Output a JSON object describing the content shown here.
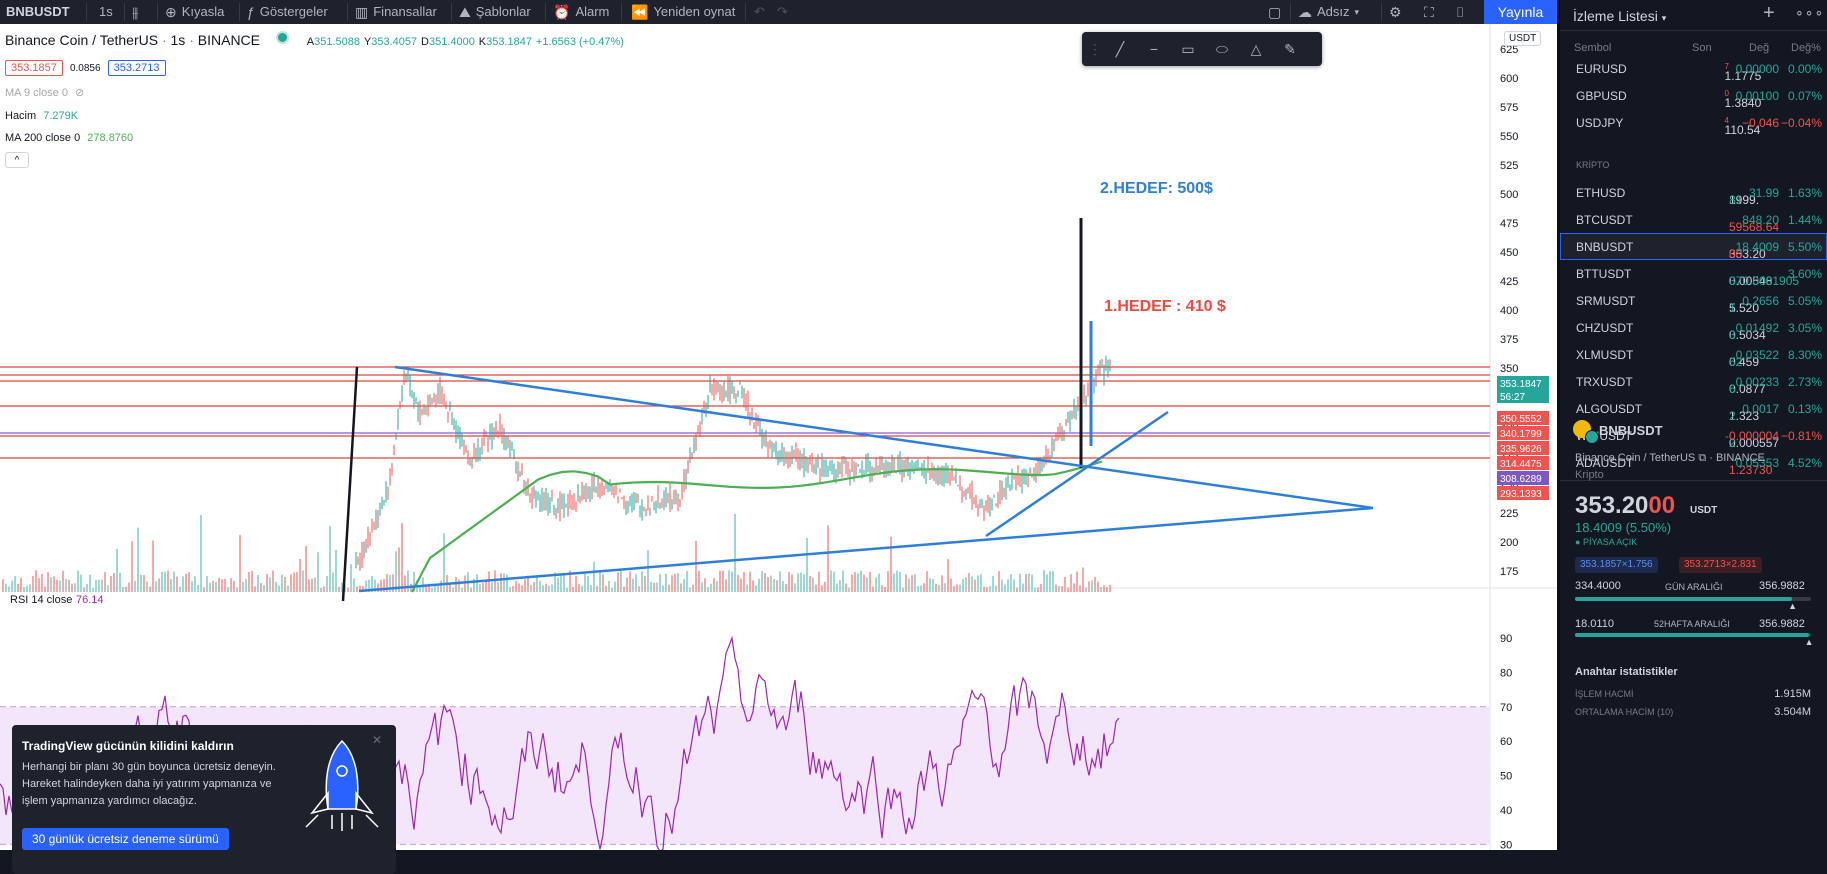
{
  "toolbar": {
    "symbol": "BNBUSDT",
    "interval": "1s",
    "compare": "Kıyasla",
    "indicators": "Göstergeler",
    "financials": "Finansallar",
    "templates": "Şablonlar",
    "alert": "Alarm",
    "replay": "Yeniden oynat",
    "layout_name": "Adsız",
    "publish": "Yayınla"
  },
  "legend": {
    "title": "Binance Coin / TetherUS",
    "interval": "1s",
    "exchange": "BINANCE",
    "o_label": "A",
    "o": "351.5088",
    "h_label": "Y",
    "h": "353.4057",
    "l_label": "D",
    "l": "351.4000",
    "c_label": "K",
    "c": "353.1847",
    "change": "+1.6563 (+0.47%)",
    "sell": "353.1857",
    "spread": "0.0856",
    "buy": "353.2713",
    "ma9": "MA 9 close 0",
    "volume_label": "Hacim",
    "volume": "7.279K",
    "ma200_label": "MA 200 close 0",
    "ma200": "278.8760",
    "collapse": "^",
    "currency": "USDT"
  },
  "annotations": {
    "target2": "2.HEDEF: 500$",
    "target1": "1.HEDEF : 410 $"
  },
  "price_axis": [
    "625",
    "600",
    "575",
    "550",
    "525",
    "500",
    "475",
    "450",
    "425",
    "400",
    "375",
    "350",
    "325",
    "300",
    "275",
    "250",
    "225",
    "200",
    "175"
  ],
  "price_labels": {
    "last": "353.1847",
    "countdown": "56:27",
    "l1": "350.5552",
    "l2": "340.1799",
    "l3": "335.9626",
    "l4": "314.4475",
    "l5": "308.6289",
    "l6": "293.1393"
  },
  "rsi": {
    "label": "RSI 14 close",
    "value": "76.14",
    "axis": [
      "90",
      "80",
      "70",
      "60",
      "50",
      "40",
      "30"
    ]
  },
  "promo": {
    "title": "TradingView gücünün kilidini kaldırın",
    "desc": "Herhangi bir planı 30 gün boyunca ücretsiz deneyin. Hareket halindeyken daha iyi yatırım yapmanıza ve işlem yapmanıza yardımcı olacağız.",
    "button": "30 günlük ücretsiz deneme sürümü"
  },
  "watchlist": {
    "title": "İzleme Listesi",
    "headers": {
      "symbol": "Sembol",
      "last": "Son",
      "chg": "Değ",
      "pct": "Değ%"
    },
    "forex": [
      {
        "sym": "EURUSD",
        "last": "1.1775",
        "sup": "7",
        "chg": "0.00000",
        "pct": "0.00%",
        "dir": "up"
      },
      {
        "sym": "GBPUSD",
        "last": "1.3840",
        "sup": "0",
        "chg": "0.00100",
        "pct": "0.07%",
        "dir": "up"
      },
      {
        "sym": "USDJPY",
        "last": "110.54",
        "sup": "4",
        "chg": "−0.046",
        "pct": "−0.04%",
        "dir": "dn"
      }
    ],
    "crypto_section": "KRİPTO",
    "crypto": [
      {
        "sym": "ETHUSD",
        "last_a": "1999.",
        "last_b": "81",
        "chg": "31.99",
        "pct": "1.63%",
        "dir": "up"
      },
      {
        "sym": "BTCUSDT",
        "last_a": "59568.64",
        "last_b": "",
        "chg": "848.20",
        "pct": "1.44%",
        "dir": "up",
        "lastred": true
      },
      {
        "sym": "BNBUSDT",
        "last_a": "353.20",
        "last_b": "00",
        "chg": "18.4009",
        "pct": "5.50%",
        "dir": "up",
        "selected": true
      },
      {
        "sym": "BTTUSDT",
        "last_a": "0.00548",
        "last_b": "370.0001905",
        "chg": "",
        "pct": "3.60%",
        "dir": "up"
      },
      {
        "sym": "SRMUSDT",
        "last_a": "5.520",
        "last_b": "1",
        "chg": "0.2656",
        "pct": "5.05%",
        "dir": "up"
      },
      {
        "sym": "CHZUSDT",
        "last_a": "0.5034",
        "last_b": "3",
        "chg": "0.01492",
        "pct": "3.05%",
        "dir": "up"
      },
      {
        "sym": "XLMUSDT",
        "last_a": "0.459",
        "last_b": "52",
        "chg": "0.03522",
        "pct": "8.30%",
        "dir": "up"
      },
      {
        "sym": "TRXUSDT",
        "last_a": "0.0877",
        "last_b": "6",
        "chg": "0.00233",
        "pct": "2.73%",
        "dir": "up"
      },
      {
        "sym": "ALGOUSDT",
        "last_a": "1.323",
        "last_b": "2",
        "chg": "0.0017",
        "pct": "0.13%",
        "dir": "up"
      },
      {
        "sym": "WINUSDT",
        "last_a": "0.000557",
        "last_b": "2",
        "chg": "-0.000004",
        "pct": "−0.81%",
        "dir": "dn"
      },
      {
        "sym": "ADAUSDT",
        "last_a": "1.23730",
        "last_b": "",
        "chg": "0.05353",
        "pct": "4.52%",
        "dir": "up",
        "lastred": true
      }
    ]
  },
  "details": {
    "symbol": "BNBUSDT",
    "name": "Binance Coin / TetherUS",
    "exchange": "BINANCE",
    "kind": "Kripto",
    "price_a": "353.20",
    "price_b": "00",
    "currency": "USDT",
    "change": "18.4009 (5.50%)",
    "market_status": "PİYASA AÇIK",
    "bid": "353.1857×1.756",
    "ask": "353.2713×2.831",
    "day_low": "334.4000",
    "day_label": "GÜN ARALIĞI",
    "day_high": "356.9882",
    "day_fill": 0.92,
    "wk_low": "18.0110",
    "wk_label": "52HAFTA ARALIĞI",
    "wk_high": "356.9882",
    "wk_fill": 0.99,
    "key_stats": "Anahtar istatistikler",
    "vol_label": "İŞLEM HACMİ",
    "vol": "1.915M",
    "avgvol_label": "ORTALAMA HACİM (10)",
    "avgvol": "3.504M"
  },
  "colors": {
    "up": "#26a69a",
    "down": "#ef5350",
    "accent": "#2962ff",
    "trend": "#2e7fd9",
    "ma200": "#4caf50",
    "rsi": "#9c27b0"
  }
}
